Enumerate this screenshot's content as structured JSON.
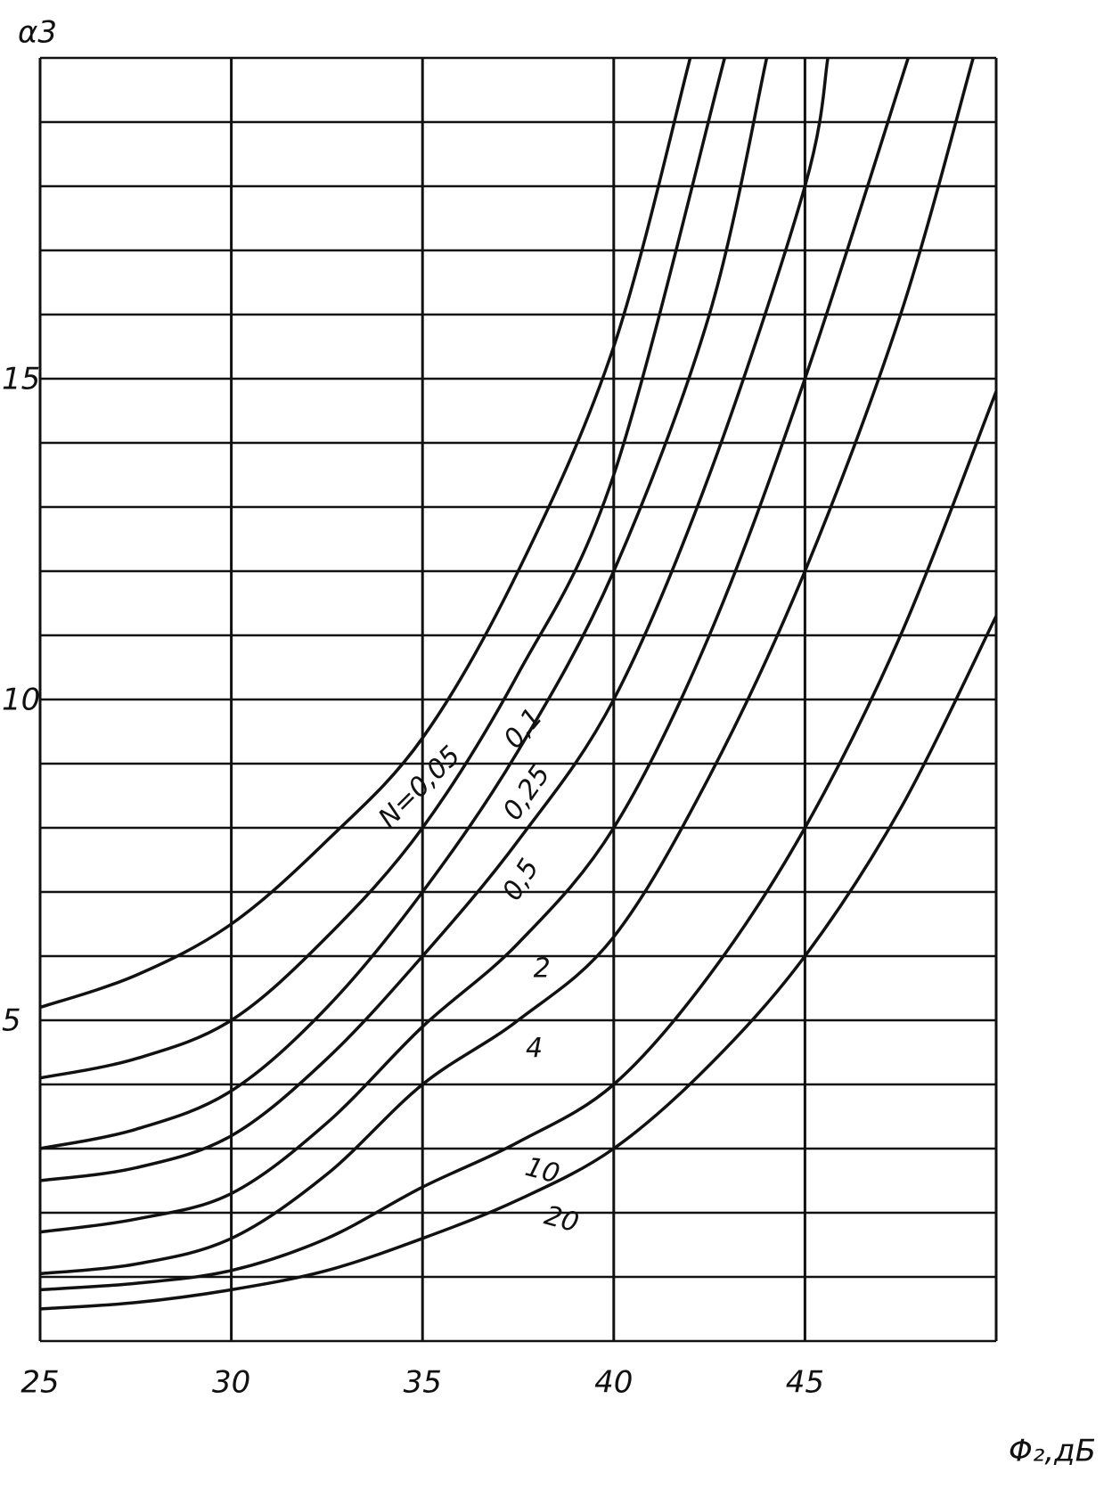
{
  "chart_data": {
    "type": "line",
    "y_label": "α3",
    "x_label": "Φ₂,дБ",
    "xlim": [
      25,
      50
    ],
    "ylim": [
      0,
      20
    ],
    "xticks": [
      25,
      30,
      35,
      40,
      45
    ],
    "yticks": [
      5,
      10,
      15
    ],
    "ygrid": [
      0,
      1,
      2,
      3,
      4,
      5,
      6,
      7,
      8,
      9,
      10,
      11,
      12,
      13,
      14,
      15,
      16,
      17,
      18,
      19,
      20
    ],
    "grid": true,
    "color": "#111111",
    "series": [
      {
        "name": "N=0,05",
        "x": [
          25,
          27.5,
          30,
          32.5,
          35,
          37.5,
          40,
          42
        ],
        "values": [
          5.2,
          5.7,
          6.5,
          7.8,
          9.4,
          12.0,
          15.5,
          20
        ]
      },
      {
        "name": "0,1",
        "x": [
          25,
          27.5,
          30,
          32.5,
          35,
          37.5,
          40,
          42.9
        ],
        "values": [
          4.1,
          4.4,
          5.0,
          6.3,
          8.0,
          10.4,
          13.5,
          20
        ]
      },
      {
        "name": "0,25",
        "x": [
          25,
          27.5,
          30,
          32.5,
          35,
          37.5,
          40,
          42.5,
          44
        ],
        "values": [
          3.0,
          3.3,
          3.9,
          5.2,
          7.0,
          9.2,
          12.0,
          16.0,
          20
        ]
      },
      {
        "name": "0,5",
        "x": [
          25,
          27.5,
          30,
          32.5,
          35,
          37.5,
          40,
          42.5,
          45,
          45.6
        ],
        "values": [
          2.5,
          2.7,
          3.2,
          4.4,
          6.0,
          7.8,
          10.0,
          13.5,
          18.0,
          20
        ]
      },
      {
        "name": "2",
        "x": [
          25,
          27.5,
          30,
          32.5,
          35,
          37.5,
          40,
          42.5,
          45,
          47.7
        ],
        "values": [
          1.7,
          1.9,
          2.3,
          3.4,
          4.9,
          6.2,
          8.0,
          11.0,
          15.0,
          20
        ]
      },
      {
        "name": "4",
        "x": [
          25,
          27.5,
          30,
          32.5,
          35,
          37.5,
          40,
          42.5,
          45,
          47.5,
          49.4
        ],
        "values": [
          1.05,
          1.2,
          1.6,
          2.6,
          4.0,
          5.0,
          6.3,
          8.8,
          12.0,
          16.0,
          20
        ]
      },
      {
        "name": "10",
        "x": [
          25,
          27.5,
          30,
          32.5,
          35,
          37.5,
          40,
          42.5,
          45,
          47.5,
          50
        ],
        "values": [
          0.8,
          0.9,
          1.1,
          1.6,
          2.4,
          3.1,
          4.0,
          5.7,
          8.0,
          11.0,
          14.8
        ]
      },
      {
        "name": "20",
        "x": [
          25,
          27.5,
          30,
          32.5,
          35,
          37.5,
          40,
          42.5,
          45,
          47.5,
          50
        ],
        "values": [
          0.5,
          0.6,
          0.8,
          1.1,
          1.6,
          2.2,
          3.0,
          4.3,
          6.0,
          8.3,
          11.3
        ]
      }
    ]
  }
}
